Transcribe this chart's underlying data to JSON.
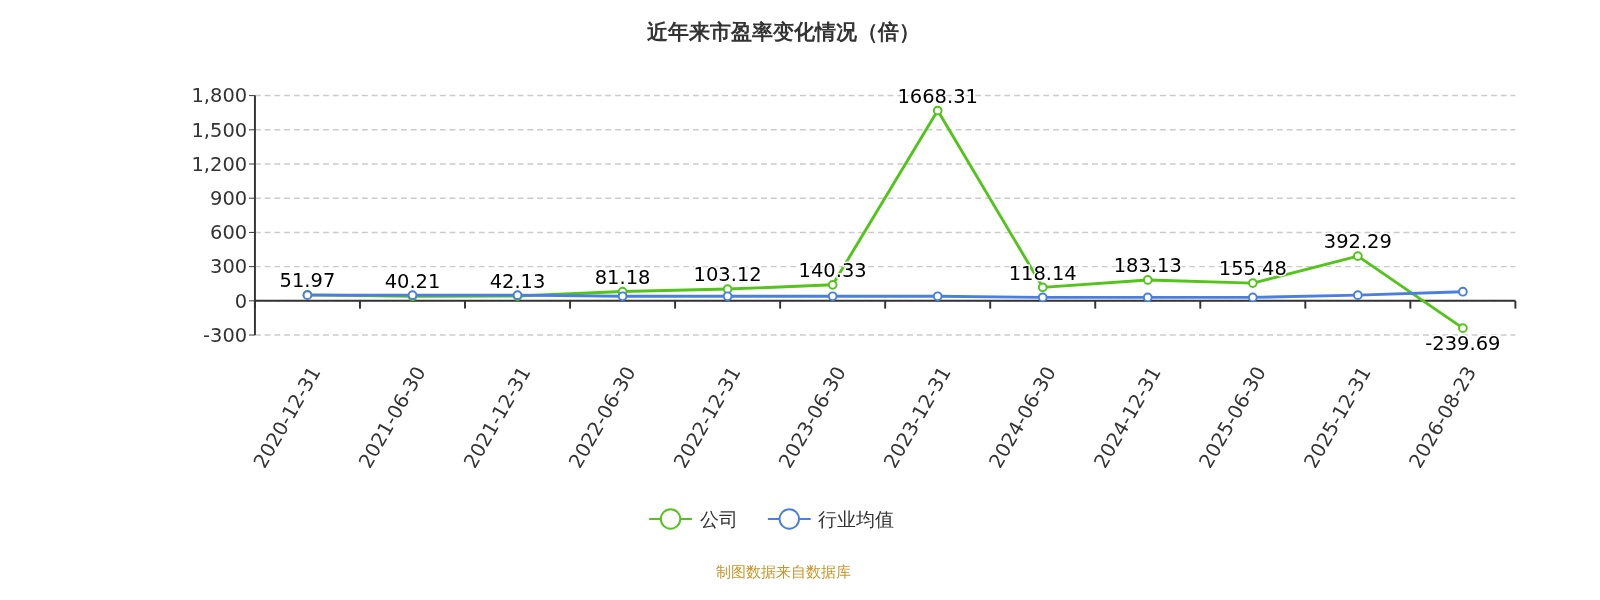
{
  "chart_data": {
    "type": "line",
    "title": "近年来市盈率变化情况（倍）",
    "categories": [
      "2020-12-31",
      "2021-06-30",
      "2021-12-31",
      "2022-06-30",
      "2022-12-31",
      "2023-06-30",
      "2023-12-31",
      "2024-06-30",
      "2024-12-31",
      "2025-06-30",
      "2025-12-31",
      "2026-08-23"
    ],
    "series": [
      {
        "name": "公司",
        "color": "#52c41a",
        "values": [
          51.97,
          40.21,
          42.13,
          81.18,
          103.12,
          140.33,
          1668.31,
          118.14,
          183.13,
          155.48,
          392.29,
          -239.69
        ],
        "data_labels": true
      },
      {
        "name": "行业均值",
        "color": "#4a7fe0",
        "values": [
          50,
          50,
          50,
          40,
          40,
          40,
          40,
          30,
          30,
          30,
          50,
          80
        ]
      }
    ],
    "ylim": [
      -300,
      1800
    ],
    "yticks": [
      {
        "value": -300,
        "label": "-300"
      },
      {
        "value": 0,
        "label": "0"
      },
      {
        "value": 300,
        "label": "300"
      },
      {
        "value": 600,
        "label": "600"
      },
      {
        "value": 900,
        "label": "900"
      },
      {
        "value": 1200,
        "label": "1,200"
      },
      {
        "value": 1500,
        "label": "1,500"
      },
      {
        "value": 1800,
        "label": "1,800"
      }
    ],
    "grid": "y",
    "legend": "bottom",
    "marker": "circle",
    "annotations": [
      "制图数据来自数据库"
    ]
  }
}
